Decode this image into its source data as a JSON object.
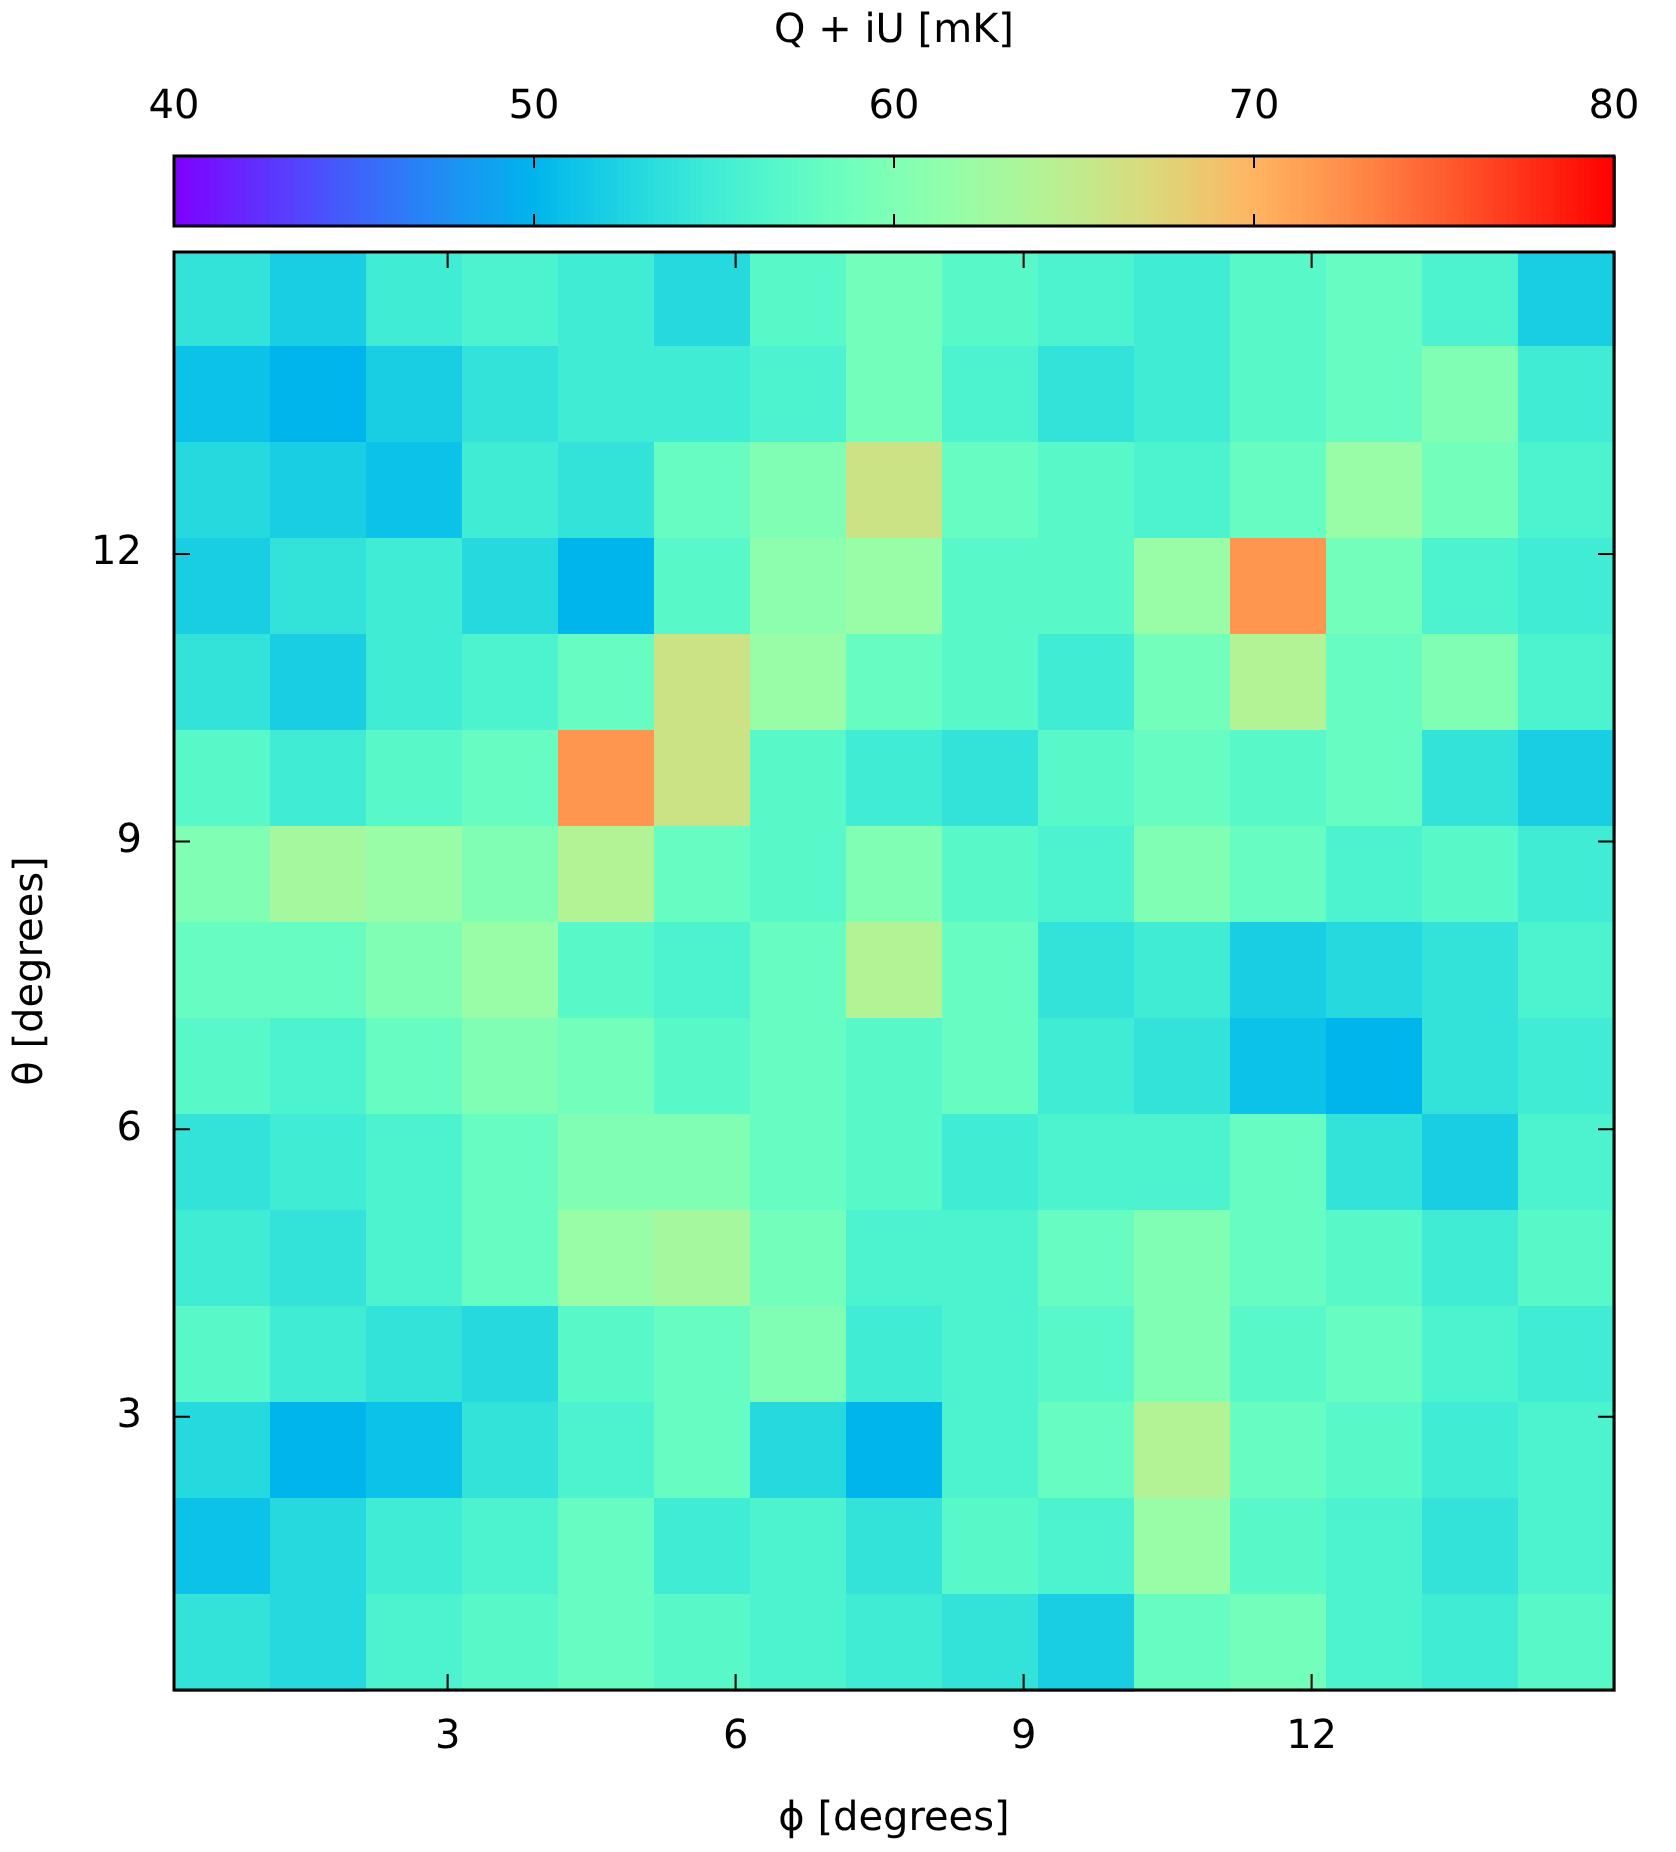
{
  "chart_data": {
    "type": "heatmap",
    "xlabel": "ϕ [degrees]",
    "ylabel": "θ [degrees]",
    "clabel": "Q + iU [mK]",
    "x": [
      0.65,
      1.65,
      2.65,
      3.65,
      4.65,
      5.65,
      6.65,
      7.65,
      8.65,
      9.65,
      10.65,
      11.65,
      12.65,
      13.65,
      14.65
    ],
    "y": [
      14.65,
      13.65,
      12.65,
      11.65,
      10.65,
      9.65,
      8.65,
      7.65,
      6.65,
      5.65,
      4.65,
      3.65,
      2.65,
      1.65,
      0.65
    ],
    "xlim": [
      0.15,
      15.15
    ],
    "ylim": [
      0.15,
      15.15
    ],
    "xticks": [
      3,
      6,
      9,
      12
    ],
    "yticks": [
      3,
      6,
      9,
      12
    ],
    "clim": [
      40,
      80
    ],
    "cticks": [
      40,
      50,
      60,
      70,
      80
    ],
    "cells": [
      [
        54,
        52,
        55,
        56,
        55,
        53,
        57,
        59,
        57,
        56,
        55,
        57,
        58,
        56,
        52
      ],
      [
        51,
        50,
        52,
        54,
        55,
        55,
        56,
        59,
        56,
        54,
        55,
        57,
        58,
        60,
        55
      ],
      [
        53,
        52,
        51,
        55,
        54,
        58,
        60,
        66,
        58,
        57,
        56,
        58,
        62,
        59,
        56
      ],
      [
        52,
        54,
        55,
        53,
        50,
        57,
        61,
        62,
        57,
        57,
        62,
        72,
        59,
        56,
        55
      ],
      [
        54,
        52,
        55,
        56,
        58,
        66,
        62,
        58,
        57,
        55,
        59,
        64,
        58,
        60,
        56
      ],
      [
        57,
        55,
        57,
        58,
        72,
        66,
        57,
        55,
        54,
        57,
        58,
        57,
        58,
        54,
        52
      ],
      [
        60,
        63,
        62,
        60,
        64,
        58,
        57,
        60,
        57,
        56,
        60,
        58,
        56,
        57,
        55
      ],
      [
        58,
        58,
        60,
        62,
        57,
        56,
        58,
        64,
        58,
        54,
        55,
        52,
        53,
        54,
        56
      ],
      [
        57,
        56,
        58,
        60,
        59,
        57,
        58,
        57,
        58,
        55,
        54,
        51,
        50,
        54,
        55
      ],
      [
        54,
        55,
        56,
        58,
        60,
        60,
        58,
        57,
        55,
        56,
        56,
        58,
        54,
        52,
        56
      ],
      [
        55,
        54,
        56,
        58,
        62,
        63,
        59,
        56,
        56,
        58,
        60,
        58,
        57,
        55,
        57
      ],
      [
        57,
        55,
        54,
        53,
        57,
        58,
        60,
        55,
        56,
        57,
        60,
        57,
        58,
        56,
        55
      ],
      [
        53,
        50,
        51,
        54,
        56,
        58,
        53,
        50,
        56,
        58,
        64,
        58,
        57,
        55,
        56
      ],
      [
        51,
        53,
        55,
        56,
        58,
        55,
        56,
        54,
        57,
        56,
        62,
        57,
        56,
        54,
        56
      ],
      [
        54,
        53,
        56,
        57,
        58,
        57,
        56,
        55,
        54,
        52,
        58,
        59,
        56,
        55,
        57
      ]
    ]
  }
}
